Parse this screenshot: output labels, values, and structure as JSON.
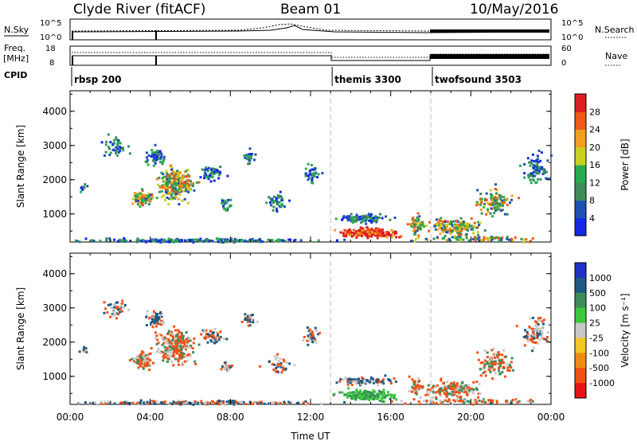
{
  "header": {
    "station": "Clyde River (fitACF)",
    "beam": "Beam 01",
    "date": "10/May/2016"
  },
  "info_panels": {
    "nsky_label": "N.Sky",
    "nsky_ticks": [
      "10^5",
      "10^0"
    ],
    "nsearch_label": "N.Search",
    "nsearch_ticks": [
      "10^5",
      "10^0"
    ],
    "freq_label_1": "Freq.",
    "freq_label_2": "[MHz]",
    "freq_ticks": [
      "18",
      "8"
    ],
    "nave_label": "Nave",
    "nave_ticks": [
      "60",
      "0"
    ],
    "cpid_label": "CPID",
    "cpid_segments": [
      {
        "label": "rbsp 200",
        "start_hour": 0
      },
      {
        "label": "themis 3300",
        "start_hour": 13
      },
      {
        "label": "twofsound 3503",
        "start_hour": 18
      }
    ]
  },
  "chart_data": [
    {
      "type": "heatmap",
      "name": "power-panel",
      "xlabel": "",
      "ylabel": "Slant Range [km]",
      "xlim": [
        0,
        24
      ],
      "ylim": [
        180,
        4600
      ],
      "y_ticks": [
        "1000",
        "2000",
        "3000",
        "4000"
      ],
      "colorbar": {
        "label": "Power [dB]",
        "ticks": [
          "4",
          "8",
          "12",
          "16",
          "20",
          "24",
          "28"
        ],
        "range": [
          0,
          30
        ],
        "colors": [
          "#1428e6",
          "#1e50b4",
          "#3c8c5a",
          "#28aa50",
          "#c8d21e",
          "#f0a01e",
          "#f05a14",
          "#dc1e1e"
        ]
      },
      "mode_change_hours": [
        13,
        18
      ]
    },
    {
      "type": "heatmap",
      "name": "velocity-panel",
      "xlabel": "Time UT",
      "ylabel": "Slant Range [km]",
      "xlim": [
        0,
        24
      ],
      "ylim": [
        180,
        4600
      ],
      "x_ticks": [
        "00:00",
        "04:00",
        "08:00",
        "12:00",
        "16:00",
        "20:00",
        "00:00"
      ],
      "y_ticks": [
        "1000",
        "2000",
        "3000",
        "4000"
      ],
      "colorbar": {
        "label": "Velocity [m s⁻¹]",
        "ticks": [
          "1000",
          "500",
          "100",
          "25",
          "-25",
          "-100",
          "-500",
          "-1000"
        ],
        "colors": [
          "#1e32c8",
          "#1e5a82",
          "#3c8c5a",
          "#3cc83c",
          "#c8c8c8",
          "#f0c81e",
          "#f08c14",
          "#f05014",
          "#e61414"
        ]
      },
      "mode_change_hours": [
        13,
        18
      ]
    }
  ]
}
